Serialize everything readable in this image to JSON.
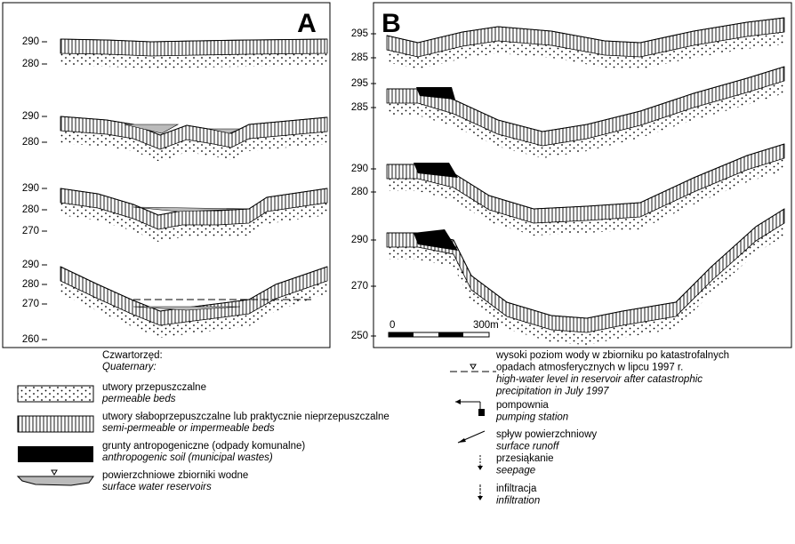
{
  "panels": [
    {
      "label": "A",
      "sections": [
        {
          "ticks": [
            290,
            280
          ]
        },
        {
          "ticks": [
            290,
            280
          ]
        },
        {
          "ticks": [
            290,
            280,
            270
          ]
        },
        {
          "ticks": [
            290,
            280,
            270,
            260
          ]
        }
      ]
    },
    {
      "label": "B",
      "sections": [
        {
          "ticks": [
            295,
            285
          ]
        },
        {
          "ticks": [
            295,
            285
          ]
        },
        {
          "ticks": [
            290,
            280
          ]
        },
        {
          "ticks": [
            290,
            270,
            250
          ]
        }
      ]
    }
  ],
  "scale": {
    "start": "0",
    "end": "300m"
  },
  "legend": {
    "heading": "Czwartorzęd:",
    "heading_en": "Quaternary:",
    "left": [
      {
        "pl": "utwory przepuszczalne",
        "en": "permeable beds"
      },
      {
        "pl": "utwory słaboprzepuszczalne lub praktycznie nieprzepuszczalne",
        "en": "semi-permeable or impermeable beds"
      },
      {
        "pl": "grunty antropogeniczne (odpady komunalne)",
        "en": "anthropogenic soil (municipal wastes)"
      },
      {
        "pl": "powierzchniowe zbiorniki wodne",
        "en": "surface water reservoirs"
      }
    ],
    "right": [
      {
        "pl": [
          "wysoki poziom wody w zbiorniku po katastrofalnych",
          "opadach atmosferycznych w lipcu 1997 r."
        ],
        "en": [
          "high-water level in reservoir after catastrophic",
          "precipitation in July 1997"
        ]
      },
      {
        "pl": [
          "pompownia"
        ],
        "en": [
          "pumping station"
        ]
      },
      {
        "pl": [
          "spływ powierzchniowy"
        ],
        "en": [
          "surface runoff"
        ]
      },
      {
        "pl": [
          "przesiąkanie"
        ],
        "en": [
          "seepage"
        ]
      },
      {
        "pl": [
          "infiltracja"
        ],
        "en": [
          "infiltration"
        ]
      }
    ]
  }
}
